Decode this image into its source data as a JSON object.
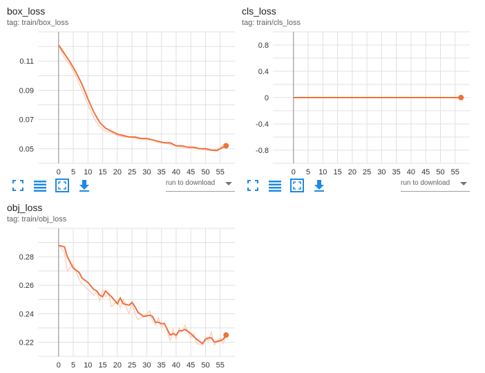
{
  "colors": {
    "accent": "#f0703b",
    "smoothed": "#f4511e",
    "raw": "#fbd3c4",
    "icon": "#1e88e5",
    "grid": "#e0e0e0",
    "zero_axis": "#9e9e9e"
  },
  "toolbar": {
    "expand_icon": "fullscreen-icon",
    "lines_icon": "data-table-icon",
    "fit_icon": "fit-domain-icon",
    "download_icon": "download-icon",
    "download_select": "run to download"
  },
  "chart_data": [
    {
      "type": "line",
      "title": "box_loss",
      "tag": "tag: train/box_loss",
      "xlim": [
        -7,
        60
      ],
      "ylim": [
        0.04,
        0.13
      ],
      "xticks": [
        0,
        5,
        10,
        15,
        20,
        25,
        30,
        35,
        40,
        45,
        50,
        55
      ],
      "yticks": [
        0.05,
        0.07,
        0.09,
        0.11
      ],
      "ytick_labels": [
        "0.05",
        "0.07",
        "0.09",
        "0.11"
      ],
      "series": [
        {
          "x": [
            0,
            2,
            4,
            6,
            8,
            10,
            12,
            14,
            16,
            18,
            20,
            22,
            24,
            26,
            28,
            30,
            32,
            34,
            36,
            38,
            40,
            42,
            44,
            46,
            48,
            50,
            52,
            54,
            56,
            57
          ],
          "smoothed": [
            0.121,
            0.115,
            0.109,
            0.102,
            0.094,
            0.084,
            0.075,
            0.068,
            0.064,
            0.062,
            0.06,
            0.059,
            0.058,
            0.058,
            0.057,
            0.057,
            0.056,
            0.055,
            0.054,
            0.054,
            0.052,
            0.052,
            0.051,
            0.051,
            0.05,
            0.05,
            0.049,
            0.049,
            0.051,
            0.052
          ],
          "raw": [
            0.121,
            0.112,
            0.107,
            0.099,
            0.09,
            0.08,
            0.071,
            0.065,
            0.062,
            0.061,
            0.059,
            0.058,
            0.058,
            0.057,
            0.057,
            0.056,
            0.056,
            0.054,
            0.054,
            0.053,
            0.052,
            0.051,
            0.051,
            0.05,
            0.05,
            0.049,
            0.049,
            0.048,
            0.053,
            0.052
          ]
        }
      ]
    },
    {
      "type": "line",
      "title": "cls_loss",
      "tag": "tag: train/cls_loss",
      "xlim": [
        -7,
        60
      ],
      "ylim": [
        -1.0,
        1.0
      ],
      "xticks": [
        0,
        5,
        10,
        15,
        20,
        25,
        30,
        35,
        40,
        45,
        50,
        55
      ],
      "yticks": [
        -0.8,
        -0.4,
        0,
        0.4,
        0.8
      ],
      "ytick_labels": [
        "-0.8",
        "-0.4",
        "0",
        "0.4",
        "0.8"
      ],
      "series": [
        {
          "x": [
            0,
            57
          ],
          "smoothed": [
            0,
            0
          ],
          "raw": [
            0,
            0
          ]
        }
      ]
    },
    {
      "type": "line",
      "title": "obj_loss",
      "tag": "tag: train/obj_loss",
      "xlim": [
        -7,
        60
      ],
      "ylim": [
        0.21,
        0.3
      ],
      "xticks": [
        0,
        5,
        10,
        15,
        20,
        25,
        30,
        35,
        40,
        45,
        50,
        55
      ],
      "yticks": [
        0.22,
        0.24,
        0.26,
        0.28
      ],
      "ytick_labels": [
        "0.22",
        "0.24",
        "0.26",
        "0.28"
      ],
      "series": [
        {
          "x": [
            0,
            2,
            3,
            5,
            7,
            8,
            10,
            12,
            13,
            14,
            15,
            16,
            17,
            18,
            20,
            21,
            22,
            24,
            25,
            26,
            27,
            29,
            31,
            32,
            33,
            34,
            35,
            36,
            38,
            39,
            40,
            41,
            42,
            43,
            45,
            46,
            47,
            49,
            50,
            51,
            52,
            53,
            55,
            56,
            57
          ],
          "smoothed": [
            0.288,
            0.287,
            0.28,
            0.272,
            0.269,
            0.265,
            0.262,
            0.257,
            0.256,
            0.253,
            0.252,
            0.256,
            0.254,
            0.252,
            0.247,
            0.251,
            0.247,
            0.246,
            0.248,
            0.245,
            0.241,
            0.238,
            0.239,
            0.238,
            0.234,
            0.234,
            0.233,
            0.233,
            0.225,
            0.226,
            0.225,
            0.228,
            0.228,
            0.229,
            0.226,
            0.224,
            0.222,
            0.219,
            0.222,
            0.223,
            0.223,
            0.22,
            0.221,
            0.222,
            0.225
          ],
          "raw": [
            0.288,
            0.283,
            0.27,
            0.275,
            0.264,
            0.261,
            0.257,
            0.253,
            0.256,
            0.249,
            0.257,
            0.252,
            0.254,
            0.245,
            0.249,
            0.244,
            0.25,
            0.24,
            0.249,
            0.24,
            0.236,
            0.238,
            0.242,
            0.235,
            0.232,
            0.237,
            0.23,
            0.234,
            0.221,
            0.229,
            0.222,
            0.23,
            0.227,
            0.232,
            0.223,
            0.226,
            0.219,
            0.218,
            0.224,
            0.221,
            0.227,
            0.218,
            0.223,
            0.219,
            0.225
          ]
        }
      ]
    }
  ]
}
